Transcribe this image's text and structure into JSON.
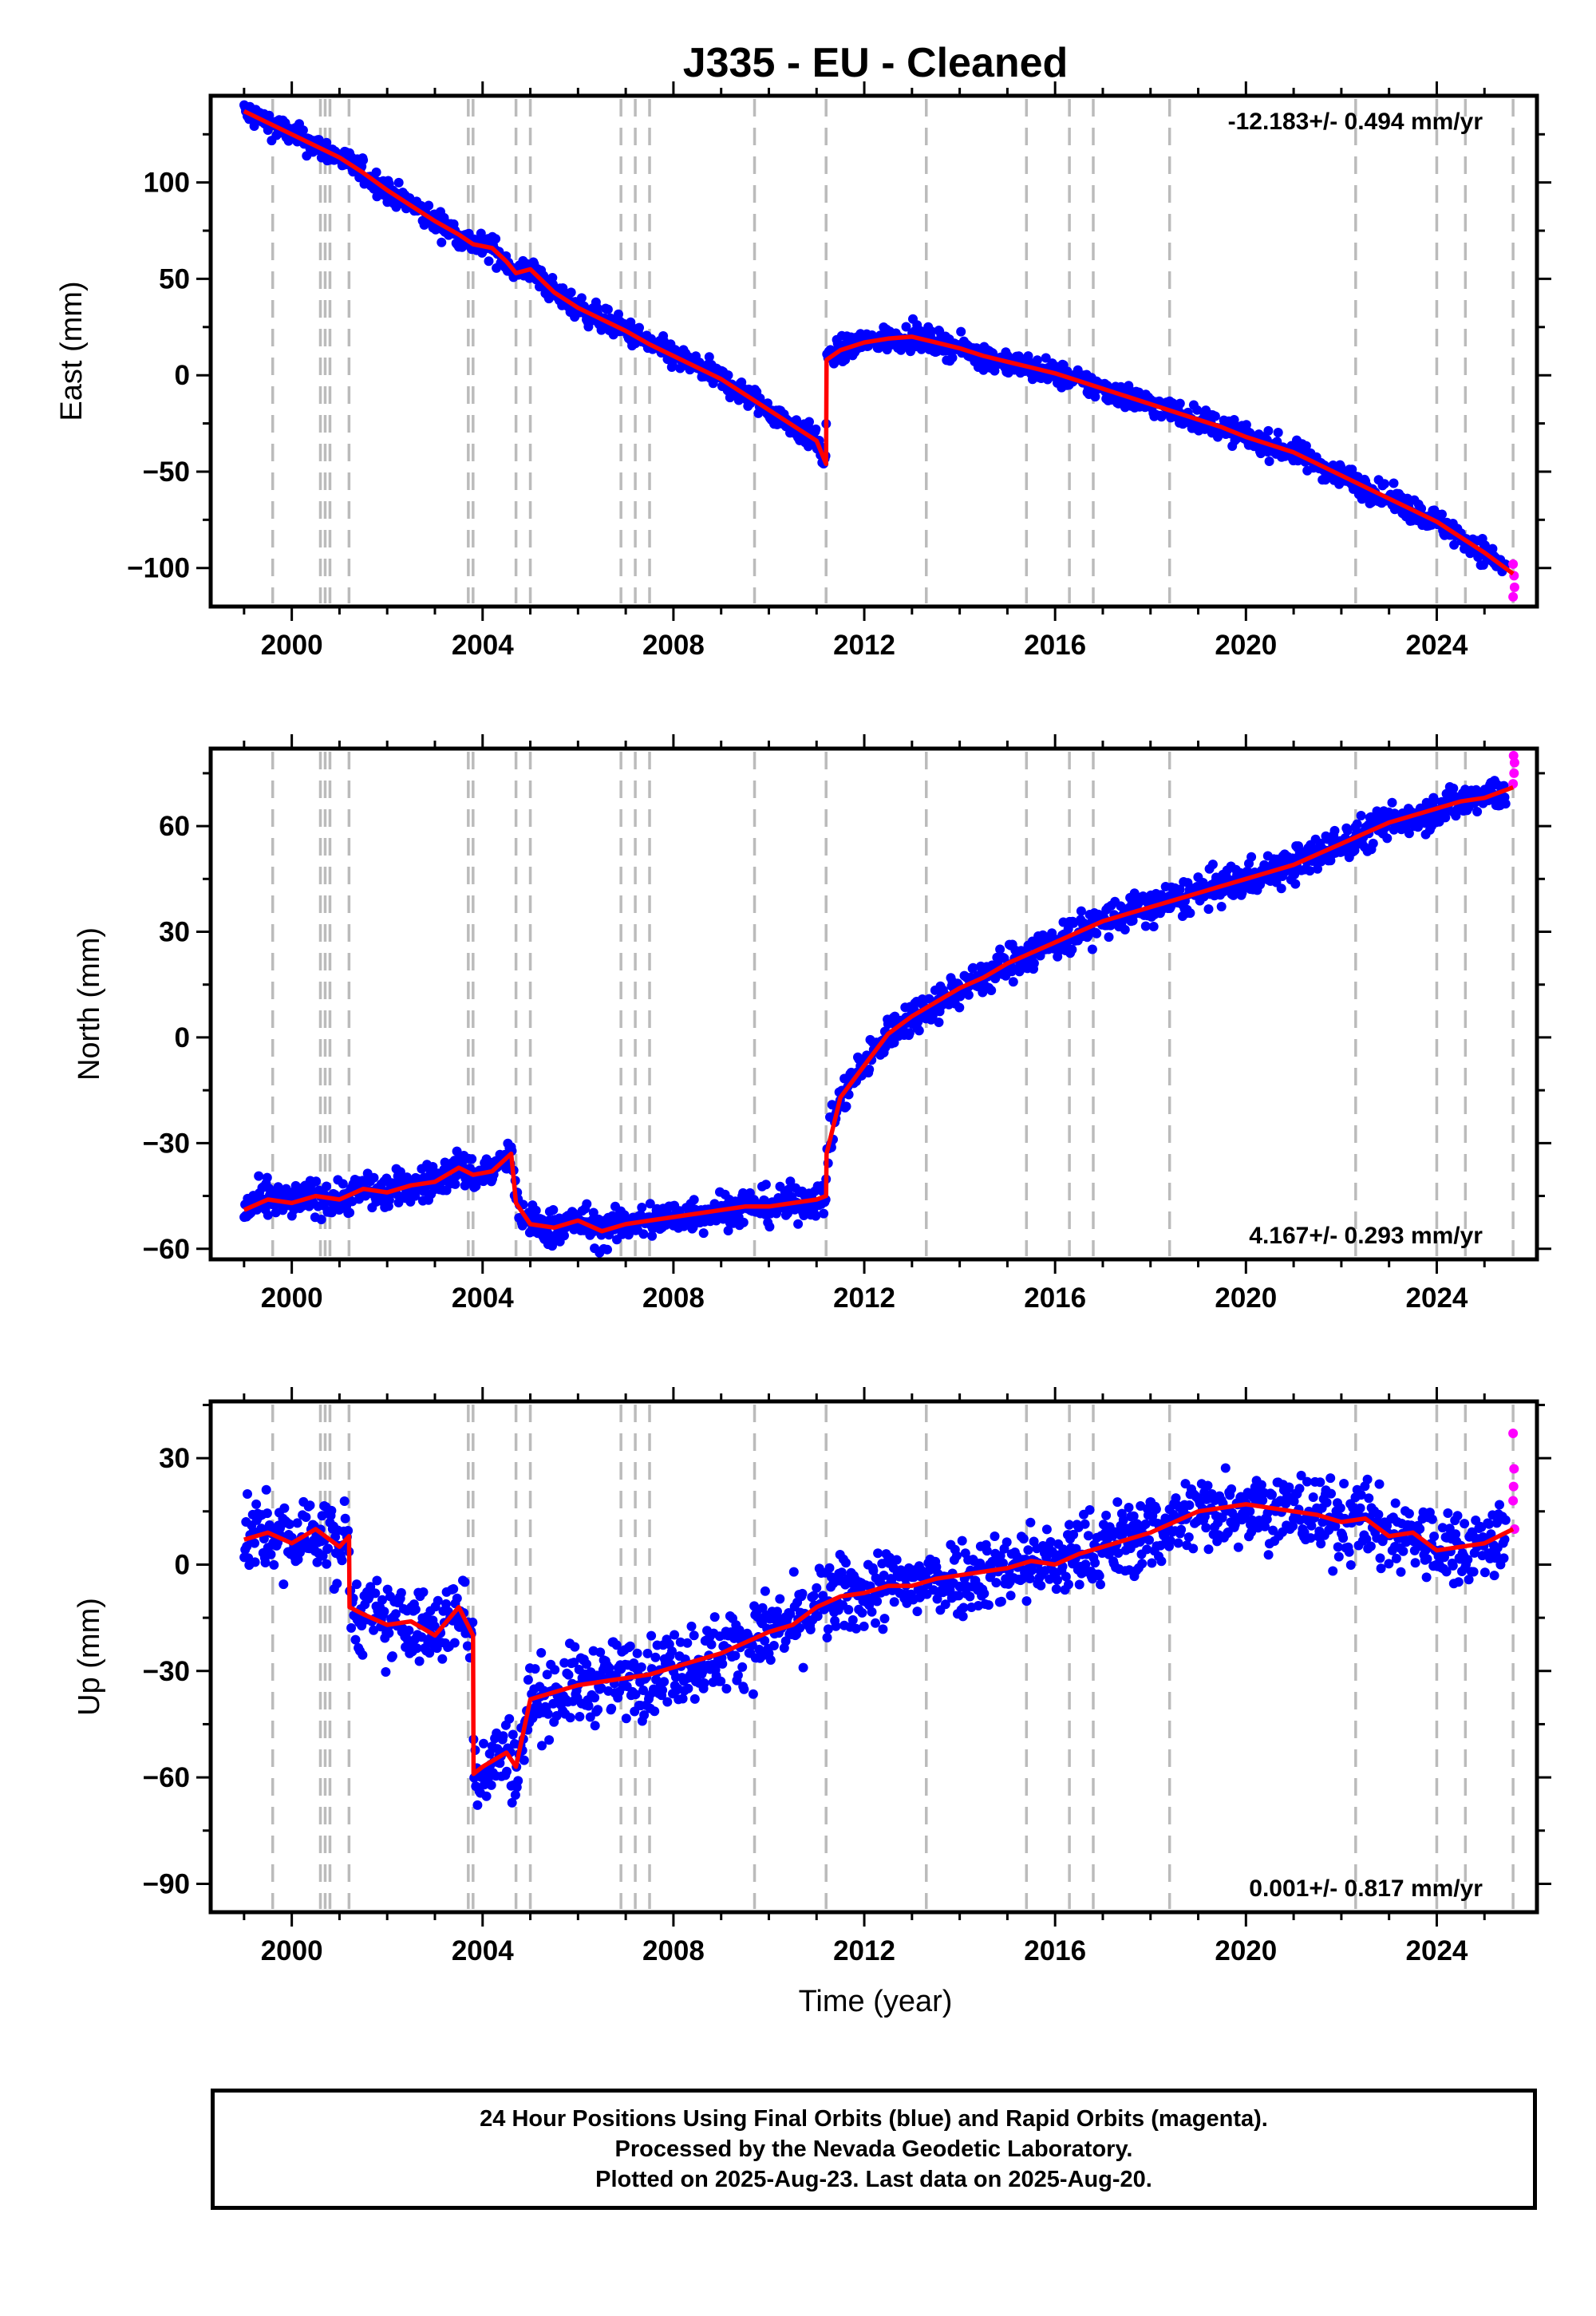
{
  "title": "J335  - EU - Cleaned",
  "x_axis_label": "Time (year)",
  "footer": {
    "line1": "24 Hour Positions Using Final Orbits (blue) and Rapid Orbits (magenta).",
    "line2": "Processed by the Nevada Geodetic Laboratory.",
    "line3": "Plotted on 2025-Aug-23. Last data on 2025-Aug-20."
  },
  "colors": {
    "final_orbits": "#0000ff",
    "rapid_orbits": "#ff00ff",
    "model": "#ff0000",
    "event_lines": "#bbbbbb"
  },
  "event_years": [
    1999.6,
    2000.6,
    2000.7,
    2000.8,
    2001.2,
    2003.7,
    2003.8,
    2004.7,
    2005.0,
    2006.9,
    2007.2,
    2007.5,
    2009.7,
    2011.2,
    2013.3,
    2015.4,
    2016.3,
    2016.8,
    2018.4,
    2022.3,
    2024.0,
    2024.6,
    2025.6
  ],
  "chart_data": [
    {
      "type": "scatter",
      "component": "east",
      "ylabel": "East (mm)",
      "rate_text": "-12.183+/- 0.494 mm/yr",
      "rate_position": "top-right",
      "xlim": [
        1998.3,
        2026.1
      ],
      "ylim": [
        -120,
        145
      ],
      "x_ticks": [
        2000,
        2004,
        2008,
        2012,
        2016,
        2020,
        2024
      ],
      "y_ticks": [
        -100,
        -50,
        0,
        50,
        100
      ],
      "model_series": {
        "name": "",
        "x": [
          1999.0,
          1999.5,
          2000.0,
          2000.5,
          2001.0,
          2001.5,
          2002.0,
          2002.5,
          2003.0,
          2003.5,
          2003.8,
          2004.2,
          2004.5,
          2004.7,
          2005.0,
          2005.5,
          2006.0,
          2006.5,
          2007.0,
          2007.5,
          2008.0,
          2008.5,
          2009.0,
          2009.5,
          2010.0,
          2010.5,
          2011.0,
          2011.2,
          2011.21,
          2011.5,
          2012.0,
          2012.5,
          2013.0,
          2013.5,
          2014.0,
          2014.5,
          2015.0,
          2015.5,
          2016.0,
          2016.5,
          2017.0,
          2017.5,
          2018.0,
          2018.5,
          2019.0,
          2019.5,
          2020.0,
          2020.5,
          2021.0,
          2021.5,
          2022.0,
          2022.5,
          2023.0,
          2023.5,
          2024.0,
          2024.5,
          2025.0,
          2025.6
        ],
        "y": [
          137,
          131,
          125,
          119,
          113,
          105,
          96,
          88,
          80,
          73,
          68,
          66,
          59,
          53,
          55,
          43,
          35,
          29,
          23,
          16,
          10,
          4,
          -2,
          -10,
          -18,
          -26,
          -34,
          -46,
          8,
          13,
          17,
          19,
          20,
          17,
          14,
          10,
          7,
          4,
          1,
          -3,
          -7,
          -11,
          -15,
          -19,
          -23,
          -27,
          -32,
          -36,
          -40,
          -46,
          -52,
          -58,
          -64,
          -70,
          -76,
          -84,
          -92,
          -103
        ]
      },
      "final_range": [
        1999.0,
        2025.45
      ],
      "rapid_points": [
        {
          "x": 2025.6,
          "y": -98
        },
        {
          "x": 2025.62,
          "y": -104
        },
        {
          "x": 2025.63,
          "y": -110
        },
        {
          "x": 2025.6,
          "y": -115
        }
      ]
    },
    {
      "type": "scatter",
      "component": "north",
      "ylabel": "North (mm)",
      "rate_text": "4.167+/- 0.293 mm/yr",
      "rate_position": "bottom-right",
      "xlim": [
        1998.3,
        2026.1
      ],
      "ylim": [
        -63,
        82
      ],
      "x_ticks": [
        2000,
        2004,
        2008,
        2012,
        2016,
        2020,
        2024
      ],
      "y_ticks": [
        -60,
        -30,
        0,
        30,
        60
      ],
      "model_series": {
        "name": "",
        "x": [
          1999.0,
          1999.5,
          2000.0,
          2000.5,
          2001.0,
          2001.5,
          2002.0,
          2002.5,
          2003.0,
          2003.5,
          2003.8,
          2004.2,
          2004.6,
          2004.7,
          2005.0,
          2005.5,
          2006.0,
          2006.5,
          2007.0,
          2007.5,
          2008.0,
          2008.5,
          2009.0,
          2009.5,
          2010.0,
          2010.5,
          2011.0,
          2011.2,
          2011.21,
          2011.5,
          2012.0,
          2012.5,
          2013.0,
          2013.5,
          2014.0,
          2014.5,
          2015.0,
          2015.5,
          2016.0,
          2016.5,
          2017.0,
          2017.5,
          2018.0,
          2018.5,
          2019.0,
          2019.5,
          2020.0,
          2020.5,
          2021.0,
          2021.5,
          2022.0,
          2022.5,
          2023.0,
          2023.5,
          2024.0,
          2024.5,
          2025.0,
          2025.6
        ],
        "y": [
          -49,
          -46,
          -47,
          -45,
          -46,
          -43,
          -44,
          -42,
          -41,
          -37,
          -39,
          -38,
          -33,
          -47,
          -53,
          -54,
          -52,
          -55,
          -53,
          -52,
          -51,
          -50,
          -49,
          -48,
          -48,
          -47,
          -46,
          -45,
          -33,
          -17,
          -8,
          1,
          6,
          10,
          14,
          17,
          21,
          24,
          27,
          30,
          33,
          35,
          37,
          39,
          41,
          43,
          45,
          47,
          49,
          52,
          55,
          58,
          61,
          63,
          65,
          67,
          68,
          71
        ]
      },
      "final_range": [
        1999.0,
        2025.45
      ],
      "rapid_points": [
        {
          "x": 2025.6,
          "y": 72
        },
        {
          "x": 2025.62,
          "y": 75
        },
        {
          "x": 2025.63,
          "y": 78
        },
        {
          "x": 2025.61,
          "y": 80
        }
      ]
    },
    {
      "type": "scatter",
      "component": "up",
      "ylabel": "Up (mm)",
      "rate_text": "0.001+/- 0.817 mm/yr",
      "rate_position": "bottom-right",
      "xlim": [
        1998.3,
        2026.1
      ],
      "ylim": [
        -98,
        46
      ],
      "x_ticks": [
        2000,
        2004,
        2008,
        2012,
        2016,
        2020,
        2024
      ],
      "y_ticks": [
        -90,
        -60,
        -30,
        0,
        30
      ],
      "model_series": {
        "name": "",
        "x": [
          1999.0,
          1999.5,
          2000.0,
          2000.5,
          2001.0,
          2001.2,
          2001.21,
          2001.5,
          2002.0,
          2002.5,
          2003.0,
          2003.5,
          2003.8,
          2003.81,
          2004.0,
          2004.5,
          2004.7,
          2005.0,
          2005.5,
          2006.0,
          2006.5,
          2007.0,
          2007.5,
          2008.0,
          2008.5,
          2009.0,
          2009.5,
          2010.0,
          2010.5,
          2011.0,
          2011.5,
          2012.0,
          2012.5,
          2013.0,
          2013.5,
          2014.0,
          2014.5,
          2015.0,
          2015.5,
          2016.0,
          2016.5,
          2017.0,
          2017.5,
          2018.0,
          2018.5,
          2019.0,
          2019.5,
          2020.0,
          2020.5,
          2021.0,
          2021.5,
          2022.0,
          2022.5,
          2023.0,
          2023.5,
          2024.0,
          2024.5,
          2025.0,
          2025.6
        ],
        "y": [
          7,
          9,
          6,
          10,
          5,
          8,
          -12,
          -14,
          -17,
          -16,
          -20,
          -12,
          -20,
          -59,
          -57,
          -53,
          -57,
          -38,
          -36,
          -34,
          -33,
          -32,
          -31,
          -29,
          -27,
          -25,
          -22,
          -19,
          -17,
          -12,
          -9,
          -8,
          -6,
          -6,
          -4,
          -3,
          -2,
          -1,
          1,
          0,
          3,
          5,
          7,
          9,
          12,
          15,
          16,
          17,
          16,
          15,
          14,
          12,
          13,
          8,
          9,
          4,
          5,
          6,
          10
        ]
      },
      "final_range": [
        1999.0,
        2025.45
      ],
      "rapid_points": [
        {
          "x": 2025.6,
          "y": 37
        },
        {
          "x": 2025.62,
          "y": 27
        },
        {
          "x": 2025.6,
          "y": 18
        },
        {
          "x": 2025.63,
          "y": 10
        },
        {
          "x": 2025.61,
          "y": 22
        }
      ]
    }
  ]
}
